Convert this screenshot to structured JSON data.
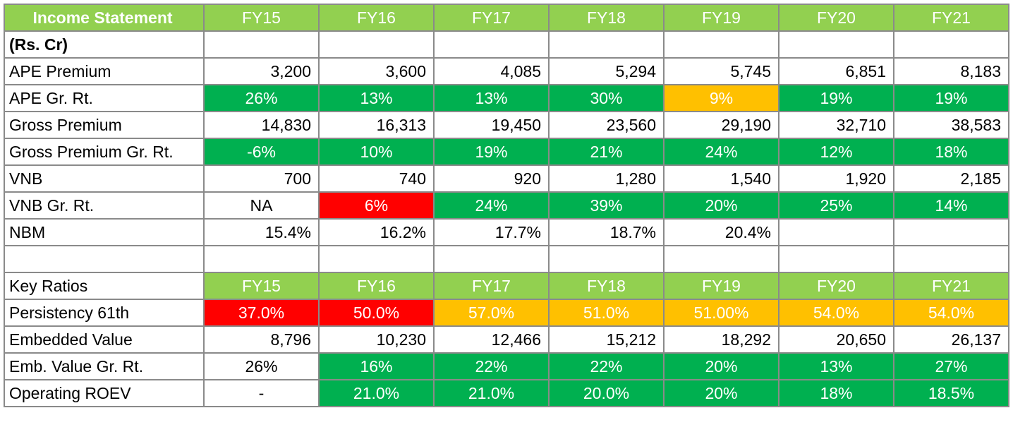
{
  "colors": {
    "header": "#92d050",
    "g": "#00b050",
    "o": "#ffc000",
    "r": "#ff0000"
  },
  "rows": [
    {
      "type": "header",
      "label": "Income Statement",
      "label_bold": true,
      "label_fill": "header",
      "cells": [
        "FY15",
        "FY16",
        "FY17",
        "FY18",
        "FY19",
        "FY20",
        "FY21"
      ]
    },
    {
      "type": "data",
      "kind": "number",
      "label": "(Rs. Cr)",
      "label_bold": true,
      "cells": [
        {
          "v": ""
        },
        {
          "v": ""
        },
        {
          "v": ""
        },
        {
          "v": ""
        },
        {
          "v": ""
        },
        {
          "v": ""
        },
        {
          "v": ""
        }
      ]
    },
    {
      "type": "data",
      "kind": "number",
      "label": "APE Premium",
      "cells": [
        {
          "v": "3,200"
        },
        {
          "v": "3,600"
        },
        {
          "v": "4,085"
        },
        {
          "v": "5,294"
        },
        {
          "v": "5,745"
        },
        {
          "v": "6,851"
        },
        {
          "v": "8,183"
        }
      ]
    },
    {
      "type": "data",
      "kind": "pct",
      "label": "APE Gr. Rt.",
      "cells": [
        {
          "v": "26%",
          "f": "g"
        },
        {
          "v": "13%",
          "f": "g"
        },
        {
          "v": "13%",
          "f": "g"
        },
        {
          "v": "30%",
          "f": "g"
        },
        {
          "v": "9%",
          "f": "o"
        },
        {
          "v": "19%",
          "f": "g"
        },
        {
          "v": "19%",
          "f": "g"
        }
      ]
    },
    {
      "type": "data",
      "kind": "number",
      "label": "Gross Premium",
      "cells": [
        {
          "v": "14,830"
        },
        {
          "v": "16,313"
        },
        {
          "v": "19,450"
        },
        {
          "v": "23,560"
        },
        {
          "v": "29,190"
        },
        {
          "v": "32,710"
        },
        {
          "v": "38,583"
        }
      ]
    },
    {
      "type": "data",
      "kind": "pct",
      "label": "Gross Premium Gr. Rt.",
      "cells": [
        {
          "v": "-6%",
          "f": "g"
        },
        {
          "v": "10%",
          "f": "g"
        },
        {
          "v": "19%",
          "f": "g"
        },
        {
          "v": "21%",
          "f": "g"
        },
        {
          "v": "24%",
          "f": "g"
        },
        {
          "v": "12%",
          "f": "g"
        },
        {
          "v": "18%",
          "f": "g"
        }
      ]
    },
    {
      "type": "data",
      "kind": "number",
      "label": "VNB",
      "cells": [
        {
          "v": "700"
        },
        {
          "v": "740"
        },
        {
          "v": "920"
        },
        {
          "v": "1,280"
        },
        {
          "v": "1,540"
        },
        {
          "v": "1,920"
        },
        {
          "v": "2,185"
        }
      ]
    },
    {
      "type": "data",
      "kind": "pct",
      "label": "VNB Gr. Rt.",
      "cells": [
        {
          "v": "NA"
        },
        {
          "v": "6%",
          "f": "r"
        },
        {
          "v": "24%",
          "f": "g"
        },
        {
          "v": "39%",
          "f": "g"
        },
        {
          "v": "20%",
          "f": "g"
        },
        {
          "v": "25%",
          "f": "g"
        },
        {
          "v": "14%",
          "f": "g"
        }
      ]
    },
    {
      "type": "data",
      "kind": "number",
      "label": "NBM",
      "cells": [
        {
          "v": "15.4%"
        },
        {
          "v": "16.2%"
        },
        {
          "v": "17.7%"
        },
        {
          "v": "18.7%"
        },
        {
          "v": "20.4%"
        },
        {
          "v": ""
        },
        {
          "v": ""
        }
      ]
    },
    {
      "type": "data",
      "kind": "number",
      "label": "",
      "cells": [
        {
          "v": ""
        },
        {
          "v": ""
        },
        {
          "v": ""
        },
        {
          "v": ""
        },
        {
          "v": ""
        },
        {
          "v": ""
        },
        {
          "v": ""
        }
      ]
    },
    {
      "type": "header",
      "label": "Key Ratios",
      "label_bold": false,
      "label_fill": "",
      "cells": [
        "FY15",
        "FY16",
        "FY17",
        "FY18",
        "FY19",
        "FY20",
        "FY21"
      ]
    },
    {
      "type": "data",
      "kind": "pct",
      "label": "Persistency 61th",
      "cells": [
        {
          "v": "37.0%",
          "f": "r"
        },
        {
          "v": "50.0%",
          "f": "r"
        },
        {
          "v": "57.0%",
          "f": "o"
        },
        {
          "v": "51.0%",
          "f": "o"
        },
        {
          "v": "51.00%",
          "f": "o"
        },
        {
          "v": "54.0%",
          "f": "o"
        },
        {
          "v": "54.0%",
          "f": "o"
        }
      ]
    },
    {
      "type": "data",
      "kind": "number",
      "label": "Embedded Value",
      "cells": [
        {
          "v": "8,796"
        },
        {
          "v": "10,230"
        },
        {
          "v": "12,466"
        },
        {
          "v": "15,212"
        },
        {
          "v": "18,292"
        },
        {
          "v": "20,650"
        },
        {
          "v": "26,137"
        }
      ]
    },
    {
      "type": "data",
      "kind": "pct",
      "label": "Emb. Value Gr. Rt.",
      "cells": [
        {
          "v": "26%"
        },
        {
          "v": "16%",
          "f": "g"
        },
        {
          "v": "22%",
          "f": "g"
        },
        {
          "v": "22%",
          "f": "g"
        },
        {
          "v": "20%",
          "f": "g"
        },
        {
          "v": "13%",
          "f": "g"
        },
        {
          "v": "27%",
          "f": "g"
        }
      ]
    },
    {
      "type": "data",
      "kind": "pct",
      "label": "Operating ROEV",
      "cells": [
        {
          "v": "-"
        },
        {
          "v": "21.0%",
          "f": "g"
        },
        {
          "v": "21.0%",
          "f": "g"
        },
        {
          "v": "20.0%",
          "f": "g"
        },
        {
          "v": "20%",
          "f": "g"
        },
        {
          "v": "18%",
          "f": "g"
        },
        {
          "v": "18.5%",
          "f": "g"
        }
      ]
    }
  ]
}
